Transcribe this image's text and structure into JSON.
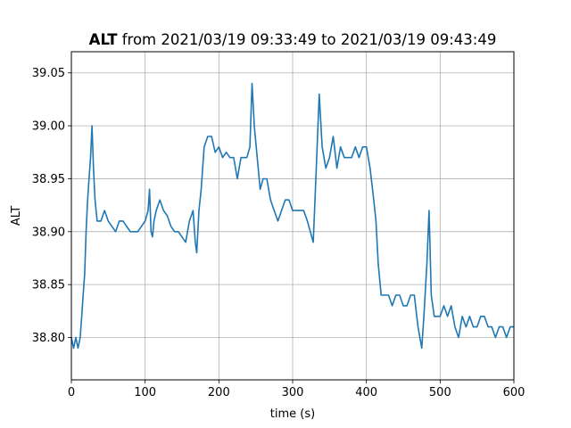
{
  "chart_data": {
    "type": "line",
    "title_bold": "ALT",
    "title_rest": " from 2021/03/19 09:33:49 to 2021/03/19 09:43:49",
    "xlabel": "time (s)",
    "ylabel": "ALT",
    "xlim": [
      0,
      600
    ],
    "ylim": [
      38.76,
      39.07
    ],
    "xticks": [
      0,
      100,
      200,
      300,
      400,
      500,
      600
    ],
    "xtick_labels": [
      "0",
      "100",
      "200",
      "300",
      "400",
      "500",
      "600"
    ],
    "yticks": [
      38.8,
      38.85,
      38.9,
      38.95,
      39.0,
      39.05
    ],
    "ytick_labels": [
      "38.80",
      "38.85",
      "38.90",
      "38.95",
      "39.00",
      "39.05"
    ],
    "grid": true,
    "line_color": "#1f77b4",
    "series": [
      {
        "x": [
          0,
          3,
          6,
          9,
          12,
          14,
          16,
          18,
          20,
          22,
          24,
          26,
          28,
          30,
          32,
          35,
          40,
          45,
          50,
          55,
          60,
          65,
          70,
          75,
          80,
          85,
          90,
          95,
          100,
          104,
          106,
          108,
          110,
          112,
          115,
          120,
          125,
          130,
          135,
          140,
          145,
          150,
          155,
          160,
          165,
          168,
          170,
          173,
          176,
          180,
          185,
          190,
          195,
          200,
          205,
          210,
          215,
          220,
          225,
          230,
          235,
          238,
          242,
          245,
          248,
          252,
          256,
          260,
          265,
          270,
          275,
          280,
          285,
          290,
          295,
          300,
          305,
          310,
          315,
          320,
          324,
          328,
          332,
          336,
          340,
          345,
          350,
          355,
          360,
          365,
          370,
          375,
          380,
          385,
          390,
          395,
          400,
          405,
          410,
          413,
          416,
          420,
          425,
          430,
          435,
          440,
          445,
          450,
          455,
          460,
          465,
          470,
          475,
          478,
          482,
          485,
          488,
          492,
          496,
          500,
          505,
          510,
          515,
          520,
          525,
          530,
          535,
          540,
          545,
          550,
          555,
          560,
          565,
          570,
          575,
          580,
          585,
          590,
          595,
          600
        ],
        "y": [
          38.8,
          38.79,
          38.8,
          38.79,
          38.8,
          38.82,
          38.84,
          38.86,
          38.9,
          38.93,
          38.95,
          38.97,
          39.0,
          38.96,
          38.93,
          38.91,
          38.91,
          38.92,
          38.91,
          38.905,
          38.9,
          38.91,
          38.91,
          38.905,
          38.9,
          38.9,
          38.9,
          38.905,
          38.91,
          38.92,
          38.94,
          38.9,
          38.895,
          38.91,
          38.92,
          38.93,
          38.92,
          38.915,
          38.905,
          38.9,
          38.9,
          38.895,
          38.89,
          38.91,
          38.92,
          38.89,
          38.88,
          38.92,
          38.94,
          38.98,
          38.99,
          38.99,
          38.975,
          38.98,
          38.97,
          38.975,
          38.97,
          38.97,
          38.95,
          38.97,
          38.97,
          38.97,
          38.98,
          39.04,
          39.0,
          38.97,
          38.94,
          38.95,
          38.95,
          38.93,
          38.92,
          38.91,
          38.92,
          38.93,
          38.93,
          38.92,
          38.92,
          38.92,
          38.92,
          38.91,
          38.9,
          38.89,
          38.96,
          39.03,
          38.98,
          38.96,
          38.97,
          38.99,
          38.96,
          38.98,
          38.97,
          38.97,
          38.97,
          38.98,
          38.97,
          38.98,
          38.98,
          38.96,
          38.93,
          38.91,
          38.87,
          38.84,
          38.84,
          38.84,
          38.83,
          38.84,
          38.84,
          38.83,
          38.83,
          38.84,
          38.84,
          38.81,
          38.79,
          38.82,
          38.87,
          38.92,
          38.84,
          38.82,
          38.82,
          38.82,
          38.83,
          38.82,
          38.83,
          38.81,
          38.8,
          38.82,
          38.81,
          38.82,
          38.81,
          38.81,
          38.82,
          38.82,
          38.81,
          38.81,
          38.8,
          38.81,
          38.81,
          38.8,
          38.81,
          38.81
        ]
      }
    ]
  }
}
